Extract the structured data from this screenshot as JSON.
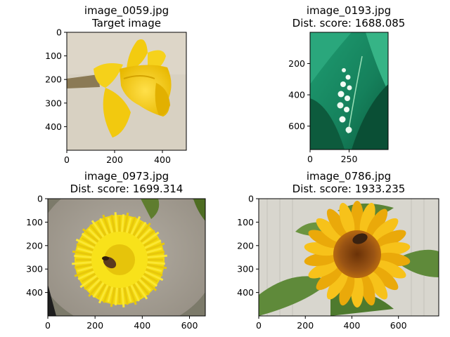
{
  "chart_data": [
    {
      "type": "image",
      "title_lines": [
        "image_0059.jpg",
        "Target image"
      ],
      "xticks": [
        0,
        200,
        400
      ],
      "yticks": [
        0,
        100,
        200,
        300,
        400
      ],
      "xlim": [
        0,
        500
      ],
      "ylim": [
        500,
        0
      ],
      "content": "yellow-daffodil",
      "colors": {
        "background": "#d9d2c3",
        "flower": "#f4cd13",
        "dark": "#d4a400",
        "stem": "#8c7a52"
      }
    },
    {
      "type": "image",
      "title_lines": [
        "image_0193.jpg",
        "Dist. score: 1688.085"
      ],
      "xticks": [
        0,
        250
      ],
      "yticks": [
        200,
        400,
        600
      ],
      "xlim": [
        0,
        500
      ],
      "ylim": [
        750,
        0
      ],
      "content": "lily-of-the-valley",
      "colors": {
        "background": "#1c8a63",
        "leaf": "#0e6b4a",
        "light": "#6fd0a0",
        "flower": "#f2fbf4"
      }
    },
    {
      "type": "image",
      "title_lines": [
        "image_0973.jpg",
        "Dist. score: 1699.314"
      ],
      "xticks": [
        0,
        200,
        400,
        600
      ],
      "yticks": [
        0,
        100,
        200,
        300,
        400
      ],
      "xlim": [
        0,
        667
      ],
      "ylim": [
        500,
        0
      ],
      "content": "dandelion-with-bee",
      "colors": {
        "background": "#a59e93",
        "flower": "#f8e21a",
        "dark": "#d9b80a",
        "bee": "#5a3a1e",
        "leaf": "#5a7a2a"
      }
    },
    {
      "type": "image",
      "title_lines": [
        "image_0786.jpg",
        "Dist. score: 1933.235"
      ],
      "xticks": [
        0,
        200,
        400,
        600
      ],
      "yticks": [
        0,
        100,
        200,
        300,
        400
      ],
      "xlim": [
        0,
        773
      ],
      "ylim": [
        500,
        0
      ],
      "content": "sunflower-with-bee",
      "colors": {
        "background": "#dcdad3",
        "petal": "#f5b90d",
        "center": "#8a4a12",
        "leaf": "#5f8a3a",
        "bee": "#3a2210"
      }
    }
  ]
}
